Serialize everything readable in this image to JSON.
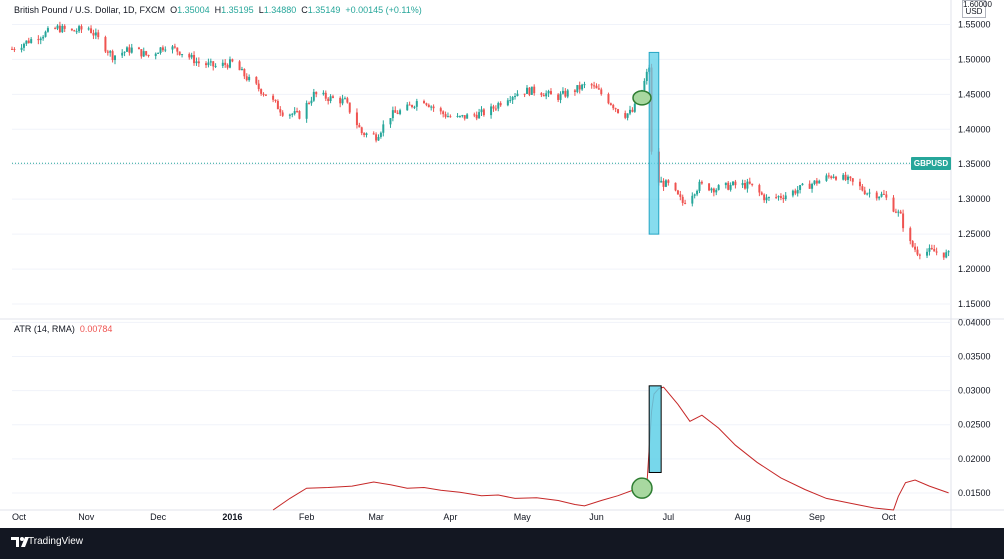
{
  "legend": {
    "symbol": "British Pound / U.S. Dollar, 1D, FXCM",
    "o_label": "O",
    "o": "1.35004",
    "h_label": "H",
    "h": "1.35195",
    "l_label": "L",
    "l": "1.34880",
    "c_label": "C",
    "c": "1.35149",
    "change": "+0.00145 (+0.11%)"
  },
  "price_axis": {
    "currency": "USD",
    "top_cut": "1.60000",
    "badge": "GBPUSD"
  },
  "atr_legend": {
    "name": "ATR (14, RMA)",
    "value": "0.00784"
  },
  "footer": {
    "brand": "TradingView"
  },
  "colors": {
    "up": "#26a69a",
    "down": "#ef5350",
    "atr_line": "#c62828",
    "highlight_fill": "#5fd0e8",
    "circle_fill": "#a8d8a0",
    "circle_stroke": "#2e7d32"
  },
  "chart_data": [
    {
      "type": "candlestick",
      "title": "British Pound / U.S. Dollar, 1D, FXCM",
      "ylim": [
        1.13,
        1.585
      ],
      "y_ticks": [
        "1.55000",
        "1.50000",
        "1.45000",
        "1.40000",
        "1.35000",
        "1.30000",
        "1.25000",
        "1.20000",
        "1.15000"
      ],
      "x_ticks": [
        "Oct",
        "Nov",
        "Dec",
        "2016",
        "Feb",
        "Mar",
        "Apr",
        "May",
        "Jun",
        "Jul",
        "Aug",
        "Sep",
        "Oct"
      ],
      "close_path": [
        [
          "2015-10-01",
          1.515
        ],
        [
          "2015-10-10",
          1.53
        ],
        [
          "2015-10-20",
          1.545
        ],
        [
          "2015-10-26",
          1.54
        ],
        [
          "2015-11-02",
          1.545
        ],
        [
          "2015-11-07",
          1.525
        ],
        [
          "2015-11-12",
          1.505
        ],
        [
          "2015-11-20",
          1.515
        ],
        [
          "2015-11-27",
          1.505
        ],
        [
          "2015-12-04",
          1.52
        ],
        [
          "2015-12-11",
          1.51
        ],
        [
          "2015-12-18",
          1.495
        ],
        [
          "2015-12-25",
          1.49
        ],
        [
          "2016-01-01",
          1.495
        ],
        [
          "2016-01-08",
          1.47
        ],
        [
          "2016-01-15",
          1.45
        ],
        [
          "2016-01-22",
          1.425
        ],
        [
          "2016-01-29",
          1.42
        ],
        [
          "2016-02-04",
          1.45
        ],
        [
          "2016-02-10",
          1.445
        ],
        [
          "2016-02-17",
          1.44
        ],
        [
          "2016-02-24",
          1.395
        ],
        [
          "2016-03-01",
          1.39
        ],
        [
          "2016-03-07",
          1.42
        ],
        [
          "2016-03-14",
          1.43
        ],
        [
          "2016-03-20",
          1.445
        ],
        [
          "2016-03-27",
          1.425
        ],
        [
          "2016-04-03",
          1.415
        ],
        [
          "2016-04-10",
          1.42
        ],
        [
          "2016-04-17",
          1.425
        ],
        [
          "2016-04-24",
          1.445
        ],
        [
          "2016-05-01",
          1.455
        ],
        [
          "2016-05-08",
          1.455
        ],
        [
          "2016-05-15",
          1.445
        ],
        [
          "2016-05-22",
          1.455
        ],
        [
          "2016-05-29",
          1.465
        ],
        [
          "2016-06-05",
          1.445
        ],
        [
          "2016-06-12",
          1.42
        ],
        [
          "2016-06-16",
          1.425
        ],
        [
          "2016-06-19",
          1.445
        ],
        [
          "2016-06-23",
          1.49
        ],
        [
          "2016-06-24",
          1.365
        ],
        [
          "2016-06-27",
          1.325
        ],
        [
          "2016-07-01",
          1.32
        ],
        [
          "2016-07-07",
          1.295
        ],
        [
          "2016-07-14",
          1.32
        ],
        [
          "2016-07-21",
          1.315
        ],
        [
          "2016-07-28",
          1.32
        ],
        [
          "2016-08-04",
          1.32
        ],
        [
          "2016-08-11",
          1.3
        ],
        [
          "2016-08-18",
          1.305
        ],
        [
          "2016-08-25",
          1.315
        ],
        [
          "2016-09-01",
          1.325
        ],
        [
          "2016-09-08",
          1.335
        ],
        [
          "2016-09-15",
          1.325
        ],
        [
          "2016-09-22",
          1.31
        ],
        [
          "2016-09-29",
          1.305
        ],
        [
          "2016-10-06",
          1.275
        ],
        [
          "2016-10-09",
          1.24
        ],
        [
          "2016-10-13",
          1.225
        ],
        [
          "2016-10-20",
          1.225
        ],
        [
          "2016-10-26",
          1.22
        ]
      ],
      "last_price": 1.35149,
      "highlight": {
        "from": "2016-06-23",
        "to": "2016-06-27",
        "price_range": [
          1.25,
          1.51
        ]
      },
      "circle": {
        "date": "2016-06-20",
        "price": 1.445
      }
    },
    {
      "type": "line",
      "title": "ATR (14, RMA)",
      "ylim": [
        0.0125,
        0.0405
      ],
      "y_ticks": [
        "0.04000",
        "0.03500",
        "0.03000",
        "0.02500",
        "0.02000",
        "0.01500"
      ],
      "series": [
        {
          "name": "ATR (14, RMA)",
          "points": [
            [
              "2016-01-18",
              0.0125
            ],
            [
              "2016-01-25",
              0.0142
            ],
            [
              "2016-02-01",
              0.0157
            ],
            [
              "2016-02-10",
              0.0158
            ],
            [
              "2016-02-20",
              0.016
            ],
            [
              "2016-02-29",
              0.0166
            ],
            [
              "2016-03-07",
              0.0162
            ],
            [
              "2016-03-14",
              0.0157
            ],
            [
              "2016-03-21",
              0.0158
            ],
            [
              "2016-03-28",
              0.0154
            ],
            [
              "2016-04-05",
              0.0151
            ],
            [
              "2016-04-14",
              0.0146
            ],
            [
              "2016-04-21",
              0.0147
            ],
            [
              "2016-04-28",
              0.0142
            ],
            [
              "2016-05-07",
              0.0143
            ],
            [
              "2016-05-16",
              0.0139
            ],
            [
              "2016-05-23",
              0.0133
            ],
            [
              "2016-05-27",
              0.0131
            ],
            [
              "2016-06-03",
              0.0139
            ],
            [
              "2016-06-10",
              0.0146
            ],
            [
              "2016-06-17",
              0.0155
            ],
            [
              "2016-06-22",
              0.016
            ],
            [
              "2016-06-24",
              0.027
            ],
            [
              "2016-06-25",
              0.0295
            ],
            [
              "2016-06-27",
              0.0303
            ],
            [
              "2016-06-29",
              0.0305
            ],
            [
              "2016-07-05",
              0.028
            ],
            [
              "2016-07-10",
              0.0255
            ],
            [
              "2016-07-15",
              0.0264
            ],
            [
              "2016-07-22",
              0.0245
            ],
            [
              "2016-07-29",
              0.022
            ],
            [
              "2016-08-07",
              0.0195
            ],
            [
              "2016-08-17",
              0.0172
            ],
            [
              "2016-08-27",
              0.0155
            ],
            [
              "2016-09-05",
              0.0142
            ],
            [
              "2016-09-15",
              0.0135
            ],
            [
              "2016-09-25",
              0.0128
            ],
            [
              "2016-10-03",
              0.0125
            ],
            [
              "2016-10-05",
              0.0145
            ],
            [
              "2016-10-08",
              0.0165
            ],
            [
              "2016-10-12",
              0.0169
            ],
            [
              "2016-10-18",
              0.016
            ],
            [
              "2016-10-26",
              0.015
            ]
          ]
        }
      ],
      "highlight": {
        "from": "2016-06-23",
        "to": "2016-06-28",
        "value_range": [
          0.018,
          0.0307
        ]
      },
      "circle": {
        "date": "2016-06-20",
        "value": 0.0157
      }
    }
  ]
}
